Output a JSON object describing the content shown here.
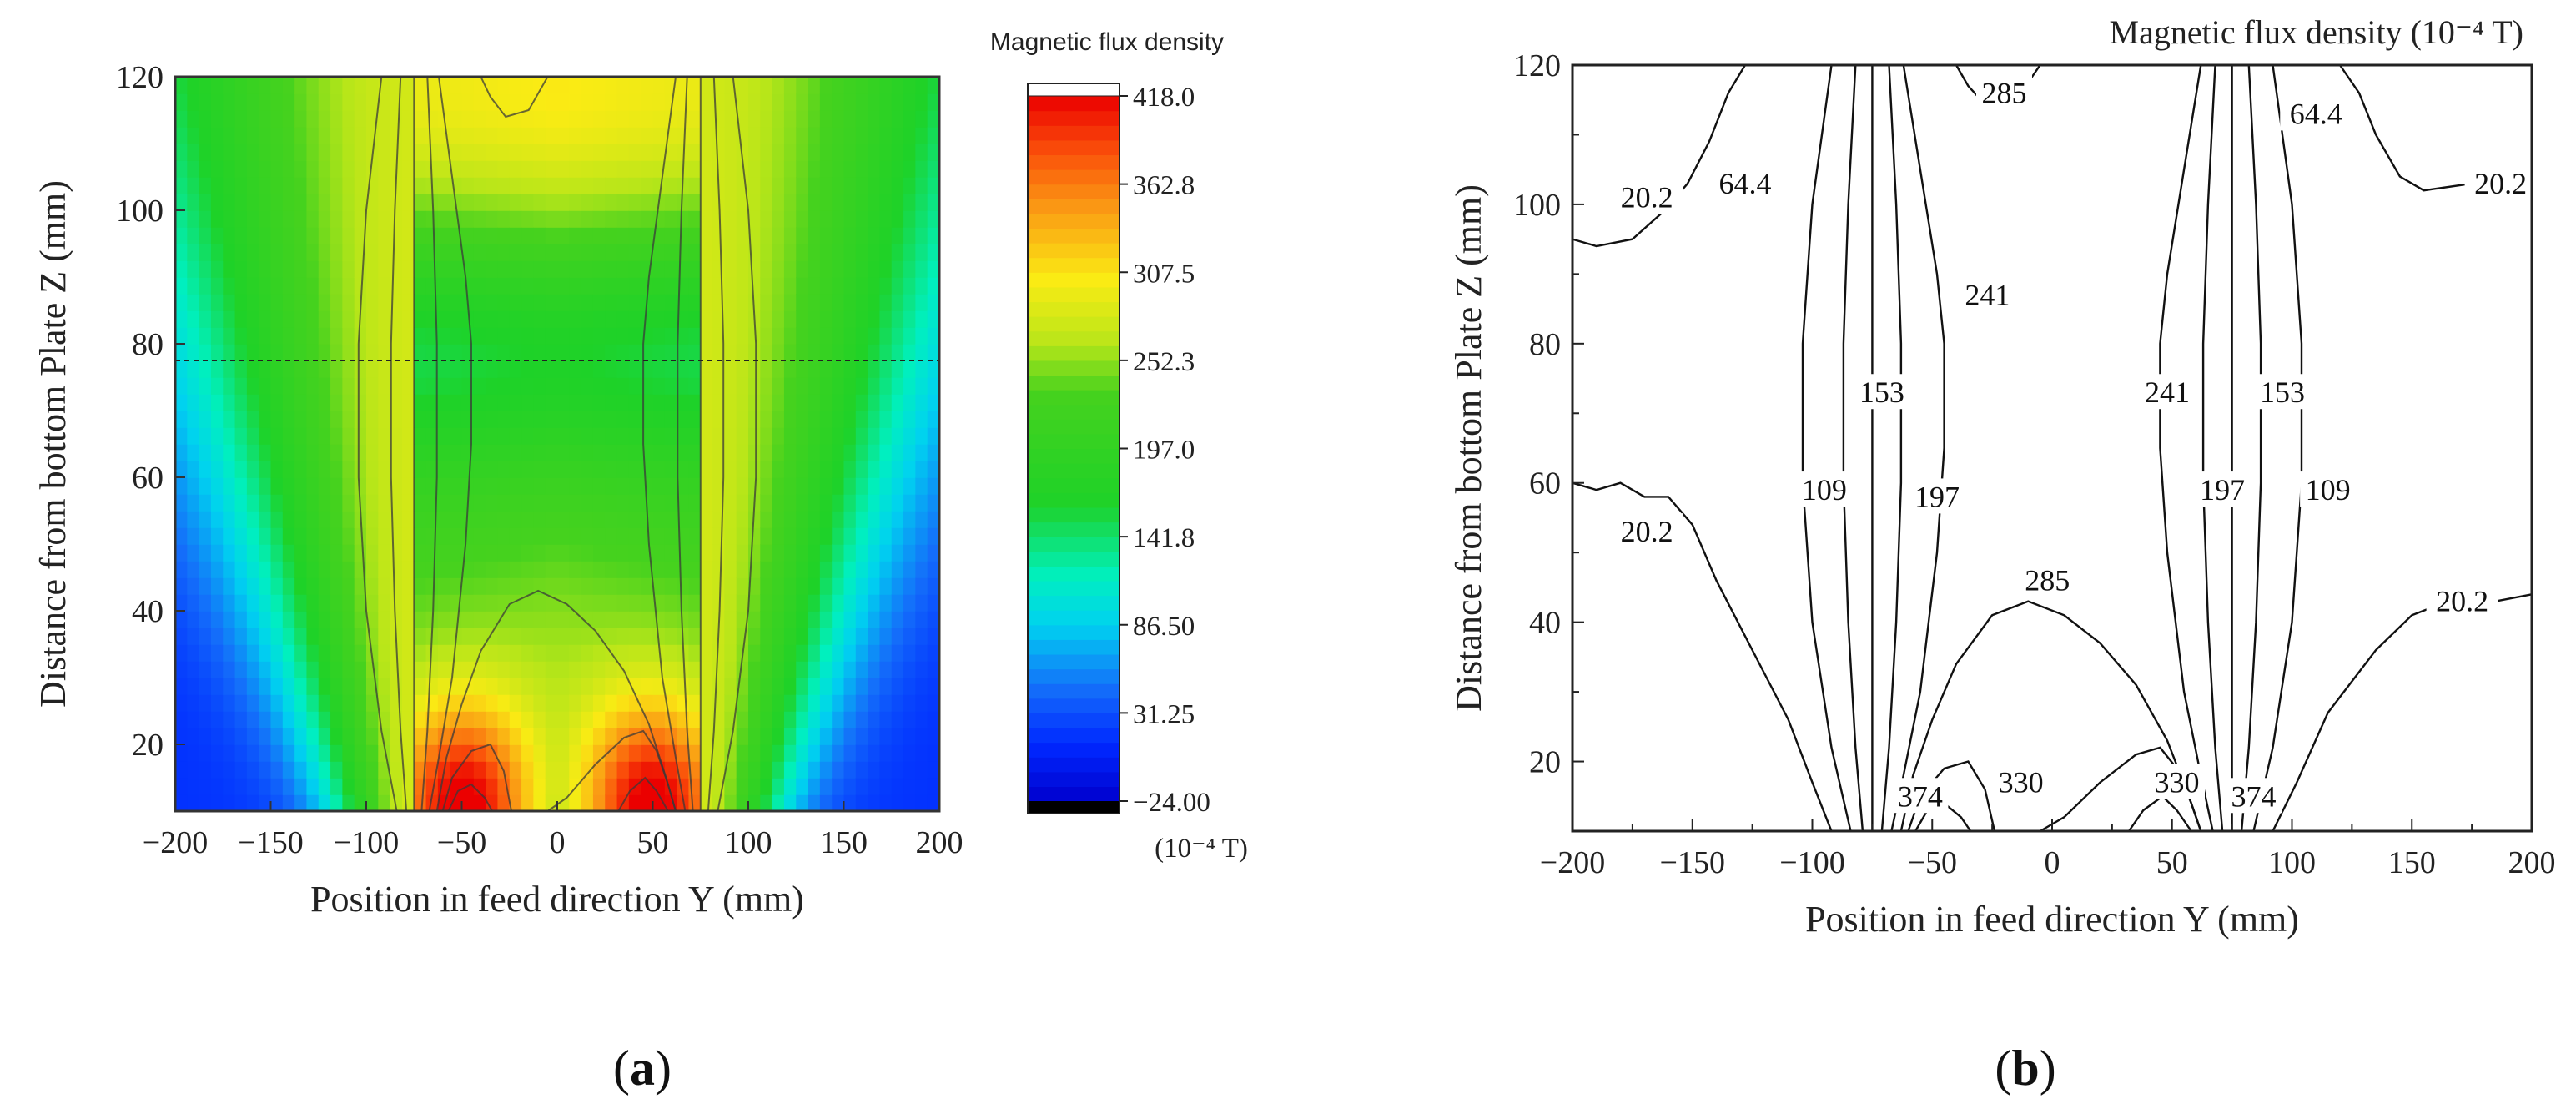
{
  "chart_data": [
    {
      "type": "heatmap",
      "panel_label": "a",
      "caption_open": "(",
      "caption_close": ")",
      "title": "",
      "xlabel": "Position in feed direction Y (mm)",
      "ylabel": "Distance from bottom Plate Z (mm)",
      "xlim": [
        -200,
        200
      ],
      "ylim": [
        10,
        120
      ],
      "xticks": [
        -200,
        -150,
        -100,
        -50,
        0,
        50,
        100,
        150,
        200
      ],
      "yticks": [
        20,
        40,
        60,
        80,
        100,
        120
      ],
      "reference_line_z": 77.5,
      "colorbar": {
        "title": "Magnetic flux density",
        "unit": "(10⁻⁴ T)",
        "range": [
          -24.0,
          418.0
        ],
        "labels": [
          "418.0",
          "362.8",
          "307.5",
          "252.3",
          "197.0",
          "141.8",
          "86.50",
          "31.25",
          "-24.00"
        ],
        "top_color": "#ffffff",
        "bottom_color": "#000000"
      },
      "field_model": {
        "pole_centers_y": [
          -75,
          75
        ],
        "gap_peak_y": [
          -50,
          50
        ],
        "background": 40,
        "gap_peak_value": 400
      },
      "contour_levels": [
        64.4,
        153,
        241,
        330
      ]
    },
    {
      "type": "contour",
      "panel_label": "b",
      "caption_open": "(",
      "caption_close": ")",
      "title": "Magnetic flux density (10⁻⁴ T)",
      "xlabel": "Position in feed direction Y (mm)",
      "ylabel": "Distance from bottom Plate Z (mm)",
      "xlim": [
        -200,
        200
      ],
      "ylim": [
        10,
        120
      ],
      "xticks": [
        -200,
        -150,
        -100,
        -50,
        0,
        50,
        100,
        150,
        200
      ],
      "yticks": [
        20,
        40,
        60,
        80,
        100,
        120
      ],
      "contours": [
        {
          "level": "20.2",
          "points": [
            [
              -200,
              95
            ],
            [
              -190,
              94
            ],
            [
              -175,
              95
            ],
            [
              -162,
              99
            ],
            [
              -152,
              103
            ],
            [
              -143,
              109
            ],
            [
              -135,
              116
            ],
            [
              -128,
              120
            ]
          ]
        },
        {
          "level": "20.2",
          "points": [
            [
              -200,
              60
            ],
            [
              -190,
              59
            ],
            [
              -180,
              60
            ],
            [
              -170,
              58
            ],
            [
              -160,
              58
            ],
            [
              -150,
              54
            ],
            [
              -140,
              46
            ],
            [
              -125,
              36
            ],
            [
              -110,
              26
            ],
            [
              -100,
              17
            ],
            [
              -92,
              10
            ]
          ]
        },
        {
          "level": "20.2",
          "points": [
            [
              120,
              120
            ],
            [
              128,
              116
            ],
            [
              135,
              110
            ],
            [
              145,
              104
            ],
            [
              155,
              102
            ],
            [
              175,
              103
            ],
            [
              200,
              103
            ]
          ]
        },
        {
          "level": "20.2",
          "points": [
            [
              92,
              10
            ],
            [
              102,
              17
            ],
            [
              115,
              27
            ],
            [
              135,
              36
            ],
            [
              150,
              41
            ],
            [
              165,
              43
            ],
            [
              185,
              43
            ],
            [
              200,
              44
            ]
          ]
        },
        {
          "level": "64.4",
          "points": [
            [
              -92,
              120
            ],
            [
              -100,
              100
            ],
            [
              -104,
              80
            ],
            [
              -104,
              60
            ],
            [
              -100,
              40
            ],
            [
              -92,
              22
            ],
            [
              -84,
              10
            ]
          ]
        },
        {
          "level": "64.4",
          "points": [
            [
              92,
              120
            ],
            [
              100,
              100
            ],
            [
              104,
              80
            ],
            [
              104,
              60
            ],
            [
              100,
              40
            ],
            [
              92,
              22
            ],
            [
              84,
              10
            ]
          ]
        },
        {
          "level": "109",
          "points": [
            [
              -82,
              120
            ],
            [
              -85,
              100
            ],
            [
              -87,
              80
            ],
            [
              -87,
              60
            ],
            [
              -85,
              40
            ],
            [
              -82,
              22
            ],
            [
              -79,
              10
            ]
          ]
        },
        {
          "level": "109",
          "points": [
            [
              82,
              120
            ],
            [
              85,
              100
            ],
            [
              87,
              80
            ],
            [
              87,
              60
            ],
            [
              85,
              40
            ],
            [
              82,
              22
            ],
            [
              79,
              10
            ]
          ]
        },
        {
          "level": "153",
          "points": [
            [
              -75,
              120
            ],
            [
              -75,
              10
            ]
          ]
        },
        {
          "level": "153",
          "points": [
            [
              75,
              120
            ],
            [
              75,
              10
            ]
          ]
        },
        {
          "level": "197",
          "points": [
            [
              -68,
              120
            ],
            [
              -65,
              100
            ],
            [
              -63,
              80
            ],
            [
              -63,
              60
            ],
            [
              -65,
              40
            ],
            [
              -68,
              22
            ],
            [
              -71,
              10
            ]
          ]
        },
        {
          "level": "197",
          "points": [
            [
              68,
              120
            ],
            [
              65,
              100
            ],
            [
              63,
              80
            ],
            [
              63,
              60
            ],
            [
              65,
              40
            ],
            [
              68,
              22
            ],
            [
              71,
              10
            ]
          ]
        },
        {
          "level": "241",
          "points": [
            [
              -62,
              120
            ],
            [
              -55,
              105
            ],
            [
              -48,
              90
            ],
            [
              -45,
              80
            ],
            [
              -45,
              65
            ],
            [
              -48,
              50
            ],
            [
              -55,
              30
            ],
            [
              -62,
              18
            ],
            [
              -67,
              10
            ]
          ]
        },
        {
          "level": "241",
          "points": [
            [
              62,
              120
            ],
            [
              55,
              105
            ],
            [
              48,
              90
            ],
            [
              45,
              80
            ],
            [
              45,
              65
            ],
            [
              48,
              50
            ],
            [
              55,
              30
            ],
            [
              62,
              18
            ],
            [
              67,
              10
            ]
          ]
        },
        {
          "level": "285",
          "points": [
            [
              -40,
              120
            ],
            [
              -35,
              117
            ],
            [
              -27,
              114
            ],
            [
              -15,
              115
            ],
            [
              -5,
              120
            ]
          ]
        },
        {
          "level": "285",
          "points": [
            [
              -63,
              10
            ],
            [
              -58,
              18
            ],
            [
              -50,
              26
            ],
            [
              -40,
              34
            ],
            [
              -25,
              41
            ],
            [
              -10,
              43
            ],
            [
              5,
              41
            ],
            [
              20,
              37
            ],
            [
              35,
              31
            ],
            [
              48,
              23
            ],
            [
              57,
              15
            ],
            [
              62,
              10
            ]
          ]
        },
        {
          "level": "330",
          "points": [
            [
              -60,
              10
            ],
            [
              -55,
              15
            ],
            [
              -45,
              19
            ],
            [
              -35,
              20
            ],
            [
              -28,
              16
            ],
            [
              -24,
              10
            ]
          ]
        },
        {
          "level": "330",
          "points": [
            [
              -5,
              10
            ],
            [
              5,
              12
            ],
            [
              20,
              17
            ],
            [
              35,
              21
            ],
            [
              45,
              22
            ],
            [
              52,
              19
            ],
            [
              58,
              14
            ],
            [
              62,
              10
            ]
          ]
        },
        {
          "level": "374",
          "points": [
            [
              -57,
              10
            ],
            [
              -52,
              13
            ],
            [
              -45,
              14
            ],
            [
              -38,
              12
            ],
            [
              -34,
              10
            ]
          ]
        },
        {
          "level": "374",
          "points": [
            [
              32,
              10
            ],
            [
              38,
              13
            ],
            [
              46,
              15
            ],
            [
              52,
              13
            ],
            [
              58,
              10
            ]
          ]
        }
      ],
      "contour_labels": [
        {
          "text": "285",
          "y": -20,
          "z": 116
        },
        {
          "text": "64.4",
          "y": 110,
          "z": 113
        },
        {
          "text": "20.2",
          "y": -169,
          "z": 101
        },
        {
          "text": "64.4",
          "y": -128,
          "z": 103
        },
        {
          "text": "20.2",
          "y": 187,
          "z": 103
        },
        {
          "text": "241",
          "y": -27,
          "z": 87
        },
        {
          "text": "153",
          "y": -71,
          "z": 73
        },
        {
          "text": "241",
          "y": 48,
          "z": 73
        },
        {
          "text": "153",
          "y": 96,
          "z": 73
        },
        {
          "text": "109",
          "y": -95,
          "z": 59
        },
        {
          "text": "197",
          "y": -48,
          "z": 58
        },
        {
          "text": "197",
          "y": 71,
          "z": 59
        },
        {
          "text": "109",
          "y": 115,
          "z": 59
        },
        {
          "text": "20.2",
          "y": -169,
          "z": 53
        },
        {
          "text": "285",
          "y": -2,
          "z": 46
        },
        {
          "text": "20.2",
          "y": 171,
          "z": 43
        },
        {
          "text": "374",
          "y": -55,
          "z": 15
        },
        {
          "text": "330",
          "y": -13,
          "z": 17
        },
        {
          "text": "330",
          "y": 52,
          "z": 17
        },
        {
          "text": "374",
          "y": 84,
          "z": 15
        }
      ]
    }
  ]
}
